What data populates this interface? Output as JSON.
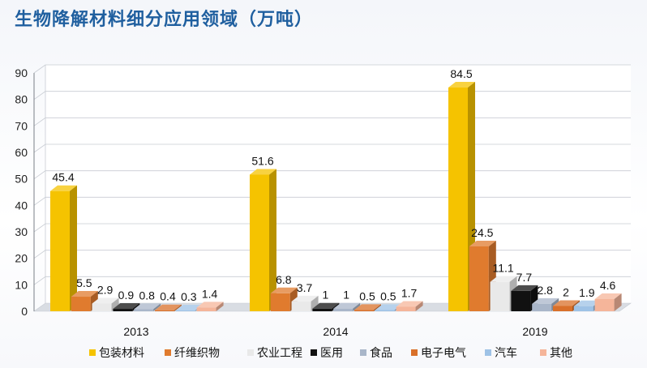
{
  "chart_data": {
    "type": "bar",
    "title": "生物降解材料细分应用领域（万吨）",
    "categories": [
      "2013",
      "2014",
      "2019"
    ],
    "series": [
      {
        "name": "包装材料",
        "color": "#f5c300",
        "values": [
          45.4,
          51.6,
          84.5
        ]
      },
      {
        "name": "纤维织物",
        "color": "#e07b2e",
        "values": [
          5.5,
          6.8,
          24.5
        ]
      },
      {
        "name": "农业工程",
        "color": "#e9e9e9",
        "values": [
          2.9,
          3.7,
          11.1
        ]
      },
      {
        "name": "医用",
        "color": "#111111",
        "values": [
          0.9,
          1,
          7.7
        ]
      },
      {
        "name": "食品",
        "color": "#a9b6c9",
        "values": [
          0.8,
          1,
          2.8
        ]
      },
      {
        "name": "电子电气",
        "color": "#d9702a",
        "values": [
          0.4,
          0.5,
          2
        ]
      },
      {
        "name": "汽车",
        "color": "#9ec2e6",
        "values": [
          0.3,
          0.5,
          1.9
        ]
      },
      {
        "name": "其他",
        "color": "#f5b59a",
        "values": [
          1.4,
          1.7,
          4.6
        ]
      }
    ],
    "ylim": [
      0,
      90
    ],
    "yticks": [
      0,
      10,
      20,
      30,
      40,
      50,
      60,
      70,
      80,
      90
    ],
    "grid": true,
    "legend": "bottom"
  }
}
